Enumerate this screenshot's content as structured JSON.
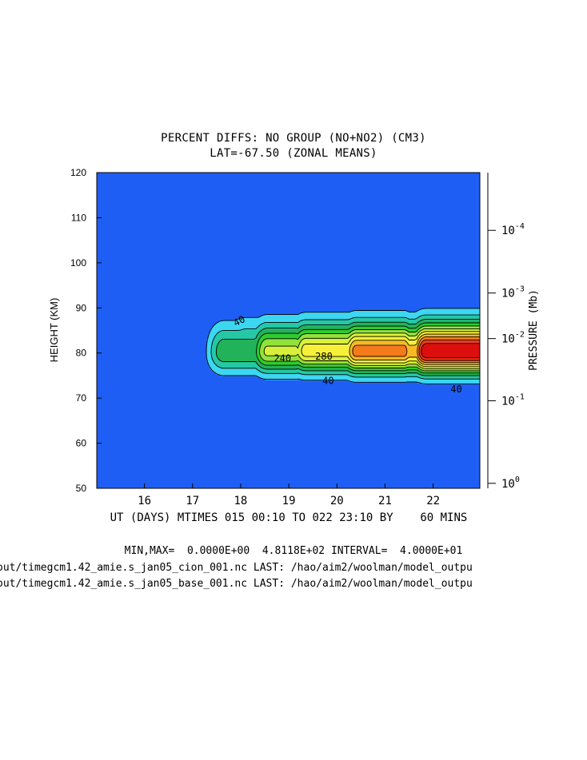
{
  "page": {
    "title_line1": "PERCENT DIFFS: NO GROUP (NO+NO2) (CM3)",
    "title_line2": "LAT=-67.50 (ZONAL MEANS)",
    "minmax_line": "MIN,MAX=  0.0000E+00  4.8118E+02 INTERVAL=  4.0000E+01",
    "file_line1": "out/timegcm1.42_amie.s_jan05_cion_001.nc LAST: /hao/aim2/woolman/model_outpu",
    "file_line2": "out/timegcm1.42_amie.s_jan05_base_001.nc LAST: /hao/aim2/woolman/model_outpu"
  },
  "chart_data": {
    "type": "heatmap",
    "title": "PERCENT DIFFS: NO GROUP (NO+NO2) (CM3)",
    "subtitle": "LAT=-67.50 (ZONAL MEANS)",
    "xlabel": "UT (DAYS) MTIMES 015 00:10 TO 022 23:10 BY    60 MINS",
    "ylabel": "HEIGHT (KM)",
    "y2label": "PRESSURE (Mb)",
    "xlim": [
      15.01,
      22.97
    ],
    "ylim": [
      50,
      120
    ],
    "x_ticks": [
      16,
      17,
      18,
      19,
      20,
      21,
      22
    ],
    "x_tick_labels": [
      "16",
      "17",
      "18",
      "19",
      "20",
      "21",
      "22"
    ],
    "y_ticks": [
      50,
      60,
      70,
      80,
      90,
      100,
      110,
      120
    ],
    "y_tick_labels": [
      "50",
      "60",
      "70",
      "80",
      "90",
      "100",
      "110",
      "120"
    ],
    "y2_ticks": [
      {
        "base": "10",
        "exp": "-4",
        "height": 107.2
      },
      {
        "base": "10",
        "exp": "-3",
        "height": 93.3
      },
      {
        "base": "10",
        "exp": "-2",
        "height": 83.2
      },
      {
        "base": "10",
        "exp": "-1",
        "height": 69.4
      },
      {
        "base": "10",
        "exp": "0",
        "height": 51.1
      }
    ],
    "min": 0.0,
    "max": 481.18,
    "contour_interval": 40,
    "levels": [
      40,
      80,
      120,
      160,
      200,
      240,
      280,
      320,
      360,
      400,
      440
    ],
    "level_colors": [
      "#1f5ef5",
      "#3cd7f0",
      "#25c8a6",
      "#22b35a",
      "#2ecc2e",
      "#93e23c",
      "#d8f03a",
      "#f6f03a",
      "#f8b824",
      "#f47a1c",
      "#ee3b1a",
      "#dc0f0f"
    ],
    "contour_labels": [
      {
        "text": "40",
        "x": 17.97,
        "y": 87.1,
        "angle": -28
      },
      {
        "text": "240",
        "x": 18.87,
        "y": 78.8,
        "angle": 0
      },
      {
        "text": "280",
        "x": 19.73,
        "y": 79.2,
        "angle": 0
      },
      {
        "text": "40",
        "x": 19.82,
        "y": 73.8,
        "angle": 0
      },
      {
        "text": "40",
        "x": 22.48,
        "y": 72.0,
        "angle": 0
      }
    ],
    "lobes": [
      {
        "x1": 17.4,
        "x2": 18.65,
        "y": 80.2,
        "peak": 150
      },
      {
        "x1": 18.3,
        "x2": 19.15,
        "y": 80.3,
        "peak": 250
      },
      {
        "x1": 19.1,
        "x2": 20.25,
        "y": 80.4,
        "peak": 300
      },
      {
        "x1": 20.15,
        "x2": 21.4,
        "y": 80.3,
        "peak": 380
      },
      {
        "x1": 21.25,
        "x2": 22.3,
        "y": 80.2,
        "peak": 340
      },
      {
        "x1": 21.6,
        "x2": 22.97,
        "y": 80.3,
        "peak": 481
      }
    ],
    "grid": false,
    "legend": "none"
  }
}
